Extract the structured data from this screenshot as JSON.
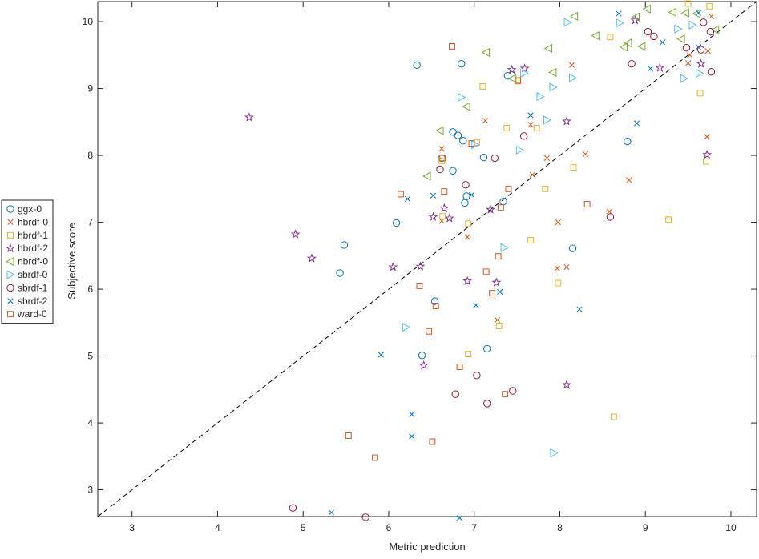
{
  "chart_data": {
    "type": "scatter",
    "xlabel": "Metric prediction",
    "ylabel": "Subjective score",
    "xlim": [
      2.6,
      10.3
    ],
    "ylim": [
      2.6,
      10.3
    ],
    "xticks": [
      3,
      4,
      5,
      6,
      7,
      8,
      9,
      10
    ],
    "yticks": [
      3,
      4,
      5,
      6,
      7,
      8,
      9,
      10
    ],
    "grid": false,
    "legend_position": "outside-left",
    "reference_line": {
      "style": "dashed",
      "from": [
        2.6,
        2.6
      ],
      "to": [
        10.3,
        10.3
      ],
      "color": "#000000"
    },
    "series": [
      {
        "name": "ggx-0",
        "marker": "circle",
        "color": "#0072BD",
        "points": [
          [
            6.33,
            9.35
          ],
          [
            6.85,
            9.37
          ],
          [
            7.39,
            9.19
          ],
          [
            6.75,
            8.35
          ],
          [
            6.81,
            8.3
          ],
          [
            6.87,
            8.22
          ],
          [
            8.79,
            8.21
          ],
          [
            6.62,
            7.96
          ],
          [
            7.11,
            7.97
          ],
          [
            6.75,
            7.77
          ],
          [
            6.91,
            7.39
          ],
          [
            6.89,
            7.29
          ],
          [
            7.34,
            7.31
          ],
          [
            6.09,
            6.99
          ],
          [
            5.48,
            6.66
          ],
          [
            5.43,
            6.24
          ],
          [
            8.15,
            6.61
          ],
          [
            6.54,
            5.82
          ],
          [
            7.15,
            5.11
          ],
          [
            6.39,
            5.01
          ]
        ]
      },
      {
        "name": "hbrdf-0",
        "marker": "x",
        "color": "#D95319",
        "points": [
          [
            8.14,
            9.35
          ],
          [
            9.52,
            9.5
          ],
          [
            9.73,
            9.56
          ],
          [
            9.5,
            9.38
          ],
          [
            7.13,
            8.52
          ],
          [
            7.66,
            8.46
          ],
          [
            6.62,
            8.1
          ],
          [
            8.3,
            8.02
          ],
          [
            7.85,
            7.96
          ],
          [
            7.68,
            7.71
          ],
          [
            8.81,
            7.63
          ],
          [
            9.72,
            8.28
          ],
          [
            6.62,
            7.02
          ],
          [
            7.98,
            7.0
          ],
          [
            6.92,
            6.78
          ],
          [
            7.97,
            6.31
          ],
          [
            8.08,
            6.33
          ],
          [
            8.58,
            7.16
          ],
          [
            7.27,
            5.54
          ],
          [
            9.77,
            10.08
          ]
        ]
      },
      {
        "name": "hbrdf-1",
        "marker": "square",
        "color": "#EDB120",
        "points": [
          [
            9.5,
            10.27
          ],
          [
            9.75,
            10.23
          ],
          [
            8.59,
            9.77
          ],
          [
            7.1,
            9.03
          ],
          [
            7.51,
            9.11
          ],
          [
            9.64,
            8.93
          ],
          [
            7.38,
            8.41
          ],
          [
            7.73,
            8.41
          ],
          [
            7.03,
            8.19
          ],
          [
            6.62,
            7.92
          ],
          [
            9.71,
            7.91
          ],
          [
            8.16,
            7.82
          ],
          [
            7.83,
            7.5
          ],
          [
            6.63,
            7.09
          ],
          [
            6.93,
            6.98
          ],
          [
            7.66,
            6.73
          ],
          [
            9.27,
            7.04
          ],
          [
            7.98,
            6.09
          ],
          [
            7.29,
            5.45
          ],
          [
            6.93,
            5.03
          ],
          [
            8.63,
            4.09
          ]
        ]
      },
      {
        "name": "hbrdf-2",
        "marker": "star",
        "color": "#7E2F8E",
        "points": [
          [
            8.88,
            10.02
          ],
          [
            7.44,
            9.28
          ],
          [
            7.59,
            9.3
          ],
          [
            9.17,
            9.31
          ],
          [
            9.65,
            9.37
          ],
          [
            4.37,
            8.57
          ],
          [
            8.08,
            8.51
          ],
          [
            9.72,
            8.01
          ],
          [
            6.65,
            7.21
          ],
          [
            7.19,
            7.19
          ],
          [
            6.52,
            7.08
          ],
          [
            6.71,
            7.06
          ],
          [
            4.91,
            6.82
          ],
          [
            5.1,
            6.46
          ],
          [
            6.05,
            6.33
          ],
          [
            6.37,
            6.34
          ],
          [
            6.92,
            6.12
          ],
          [
            7.26,
            6.1
          ],
          [
            6.41,
            4.86
          ],
          [
            8.08,
            4.57
          ]
        ]
      },
      {
        "name": "nbrdf-0",
        "marker": "triangle-left",
        "color": "#77AC30",
        "points": [
          [
            8.17,
            10.08
          ],
          [
            9.02,
            10.19
          ],
          [
            9.32,
            10.14
          ],
          [
            9.47,
            10.13
          ],
          [
            8.89,
            10.07
          ],
          [
            9.6,
            10.12
          ],
          [
            8.42,
            9.79
          ],
          [
            9.42,
            9.74
          ],
          [
            9.82,
            9.88
          ],
          [
            8.8,
            9.68
          ],
          [
            8.75,
            9.62
          ],
          [
            8.96,
            9.63
          ],
          [
            7.87,
            9.6
          ],
          [
            7.14,
            9.54
          ],
          [
            7.45,
            9.15
          ],
          [
            7.92,
            9.24
          ],
          [
            6.91,
            8.73
          ],
          [
            6.6,
            8.37
          ],
          [
            6.45,
            7.69
          ]
        ]
      },
      {
        "name": "sbrdf-0",
        "marker": "triangle-right",
        "color": "#4DBEEE",
        "points": [
          [
            8.09,
            9.99
          ],
          [
            8.7,
            9.98
          ],
          [
            9.38,
            9.89
          ],
          [
            9.55,
            9.95
          ],
          [
            9.63,
            9.23
          ],
          [
            9.45,
            9.15
          ],
          [
            8.15,
            9.16
          ],
          [
            7.92,
            9.02
          ],
          [
            6.85,
            8.87
          ],
          [
            7.77,
            8.88
          ],
          [
            7.01,
            8.16
          ],
          [
            7.53,
            8.08
          ],
          [
            7.85,
            8.53
          ],
          [
            7.58,
            9.23
          ],
          [
            7.35,
            6.62
          ],
          [
            6.2,
            5.43
          ],
          [
            7.93,
            3.55
          ]
        ]
      },
      {
        "name": "sbrdf-1",
        "marker": "circle",
        "color": "#A2142F",
        "points": [
          [
            9.03,
            9.85
          ],
          [
            9.1,
            9.78
          ],
          [
            9.68,
            9.99
          ],
          [
            9.76,
            9.85
          ],
          [
            9.48,
            9.61
          ],
          [
            9.65,
            9.58
          ],
          [
            8.84,
            9.37
          ],
          [
            9.77,
            9.25
          ],
          [
            7.58,
            8.29
          ],
          [
            7.24,
            7.96
          ],
          [
            6.6,
            7.79
          ],
          [
            6.9,
            7.56
          ],
          [
            8.59,
            7.08
          ],
          [
            7.03,
            4.71
          ],
          [
            6.78,
            4.43
          ],
          [
            7.45,
            4.48
          ],
          [
            7.15,
            4.29
          ],
          [
            4.88,
            2.73
          ],
          [
            5.73,
            2.59
          ]
        ]
      },
      {
        "name": "sbrdf-2",
        "marker": "x",
        "color": "#0072BD",
        "points": [
          [
            8.69,
            10.12
          ],
          [
            9.62,
            10.13
          ],
          [
            9.2,
            9.69
          ],
          [
            9.62,
            9.62
          ],
          [
            9.06,
            9.3
          ],
          [
            7.66,
            8.6
          ],
          [
            8.9,
            8.48
          ],
          [
            6.22,
            7.35
          ],
          [
            6.52,
            7.4
          ],
          [
            6.97,
            7.41
          ],
          [
            7.02,
            5.76
          ],
          [
            7.3,
            5.96
          ],
          [
            8.23,
            5.7
          ],
          [
            5.91,
            5.02
          ],
          [
            6.27,
            4.13
          ],
          [
            6.27,
            3.8
          ],
          [
            5.33,
            2.66
          ],
          [
            6.83,
            2.58
          ]
        ]
      },
      {
        "name": "ward-0",
        "marker": "square",
        "color": "#D95319",
        "points": [
          [
            6.74,
            9.63
          ],
          [
            7.51,
            9.12
          ],
          [
            6.63,
            7.96
          ],
          [
            6.97,
            8.18
          ],
          [
            6.14,
            7.42
          ],
          [
            6.65,
            7.46
          ],
          [
            7.4,
            7.5
          ],
          [
            8.32,
            7.27
          ],
          [
            7.31,
            7.22
          ],
          [
            7.28,
            6.49
          ],
          [
            7.14,
            6.26
          ],
          [
            6.36,
            6.05
          ],
          [
            7.21,
            5.94
          ],
          [
            6.55,
            5.75
          ],
          [
            6.47,
            5.37
          ],
          [
            6.83,
            4.84
          ],
          [
            7.36,
            4.43
          ],
          [
            6.51,
            3.72
          ],
          [
            5.53,
            3.81
          ],
          [
            5.84,
            3.48
          ]
        ]
      }
    ]
  }
}
